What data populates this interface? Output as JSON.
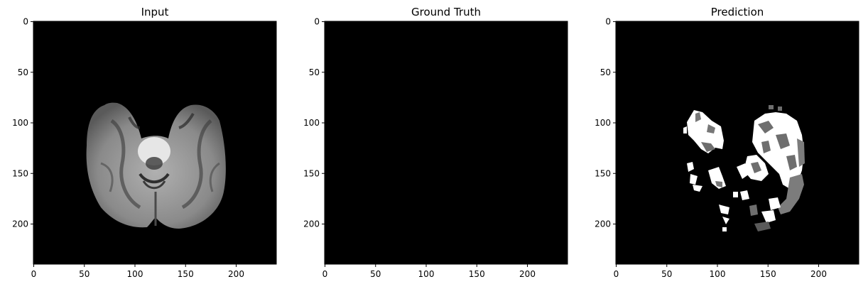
{
  "panels": [
    {
      "title": "Input"
    },
    {
      "title": "Ground Truth"
    },
    {
      "title": "Prediction"
    }
  ],
  "axes": {
    "y_ticks": [
      "0",
      "50",
      "100",
      "150",
      "200"
    ],
    "x_ticks": [
      "0",
      "50",
      "100",
      "150",
      "200"
    ]
  },
  "colors": {
    "background": "#000000",
    "brain_gray": "#8a8a8a",
    "brain_light": "#d8d8d8",
    "pred_white": "#ffffff",
    "pred_gray": "#6e6e6e"
  }
}
